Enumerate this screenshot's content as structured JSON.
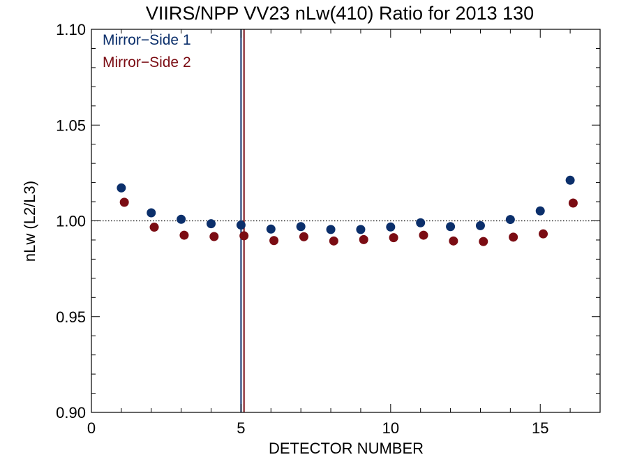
{
  "chart_data": {
    "type": "scatter",
    "title": "VIIRS/NPP VV23 nLw(410) Ratio for 2013 130",
    "xlabel": "DETECTOR NUMBER",
    "ylabel": "nLw (L2/L3)",
    "xlim": [
      0,
      17
    ],
    "ylim": [
      0.9,
      1.1
    ],
    "xticks": [
      0,
      5,
      10,
      15
    ],
    "xtick_labels": [
      "0",
      "5",
      "10",
      "15"
    ],
    "yticks": [
      0.9,
      0.95,
      1.0,
      1.05,
      1.1
    ],
    "ytick_labels": [
      "0.90",
      "0.95",
      "1.00",
      "1.05",
      "1.10"
    ],
    "reference_line": {
      "y": 1.0,
      "style": "dotted",
      "color": "#000000"
    },
    "legend": {
      "placement": "top-left"
    },
    "series": [
      {
        "name": "Mirror−Side 1",
        "color": "#0b2f6b",
        "x": [
          1,
          2,
          3,
          4,
          5,
          6,
          7,
          8,
          9,
          10,
          11,
          12,
          13,
          14,
          15,
          16
        ],
        "y": [
          1.0172,
          1.0042,
          1.0008,
          0.9985,
          0.9978,
          0.9957,
          0.997,
          0.9955,
          0.9955,
          0.9968,
          0.999,
          0.997,
          0.9975,
          1.0007,
          1.0052,
          1.0212
        ],
        "vline_x": 5.0
      },
      {
        "name": "Mirror−Side 2",
        "color": "#7b0c13",
        "x": [
          1.1,
          2.1,
          3.1,
          4.1,
          5.1,
          6.1,
          7.1,
          8.1,
          9.1,
          10.1,
          11.1,
          12.1,
          13.1,
          14.1,
          15.1,
          16.1
        ],
        "y": [
          1.0097,
          0.9967,
          0.9925,
          0.9918,
          0.9922,
          0.9897,
          0.9917,
          0.9895,
          0.9902,
          0.9912,
          0.9925,
          0.9895,
          0.9892,
          0.9915,
          0.9932,
          1.0093
        ],
        "vline_x": 5.1
      }
    ]
  }
}
